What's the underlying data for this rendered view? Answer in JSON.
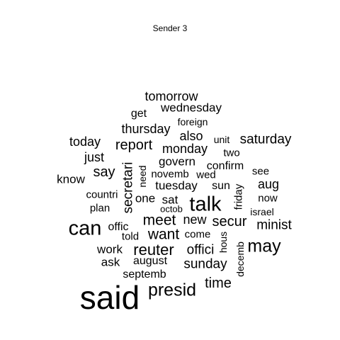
{
  "title": "Sender 3",
  "text_color": "#000000",
  "words": [
    {
      "text": "said",
      "size": 5
    },
    {
      "text": "presid",
      "size": 4
    },
    {
      "text": "can",
      "size": 4
    },
    {
      "text": "talk",
      "size": 4
    },
    {
      "text": "may",
      "size": 4
    },
    {
      "text": "reuter",
      "size": 3
    },
    {
      "text": "meet",
      "size": 3
    },
    {
      "text": "want",
      "size": 3
    },
    {
      "text": "secur",
      "size": 3
    },
    {
      "text": "report",
      "size": 3
    },
    {
      "text": "say",
      "size": 3
    },
    {
      "text": "secretari",
      "size": 3
    },
    {
      "text": "time",
      "size": 2
    },
    {
      "text": "sunday",
      "size": 2
    },
    {
      "text": "offici",
      "size": 2
    },
    {
      "text": "new",
      "size": 2
    },
    {
      "text": "minist",
      "size": 2
    },
    {
      "text": "saturday",
      "size": 2
    },
    {
      "text": "wednesday",
      "size": 2
    },
    {
      "text": "tomorrow",
      "size": 2
    },
    {
      "text": "thursday",
      "size": 2
    },
    {
      "text": "today",
      "size": 2
    },
    {
      "text": "also",
      "size": 2
    },
    {
      "text": "monday",
      "size": 2
    },
    {
      "text": "just",
      "size": 2
    },
    {
      "text": "govern",
      "size": 2
    },
    {
      "text": "know",
      "size": 2
    },
    {
      "text": "tuesday",
      "size": 2
    },
    {
      "text": "work",
      "size": 2
    },
    {
      "text": "sat",
      "size": 2
    },
    {
      "text": "aug",
      "size": 2
    },
    {
      "text": "sun",
      "size": 2
    },
    {
      "text": "ask",
      "size": 2
    },
    {
      "text": "septemb",
      "size": 2
    },
    {
      "text": "august",
      "size": 2
    },
    {
      "text": "confirm",
      "size": 2
    },
    {
      "text": "one",
      "size": 2
    },
    {
      "text": "get",
      "size": 2
    },
    {
      "text": "foreign",
      "size": 1
    },
    {
      "text": "unit",
      "size": 1
    },
    {
      "text": "two",
      "size": 1
    },
    {
      "text": "see",
      "size": 1
    },
    {
      "text": "now",
      "size": 1
    },
    {
      "text": "israel",
      "size": 1
    },
    {
      "text": "novemb",
      "size": 1
    },
    {
      "text": "wed",
      "size": 1
    },
    {
      "text": "need",
      "size": 1
    },
    {
      "text": "countri",
      "size": 1
    },
    {
      "text": "plan",
      "size": 1
    },
    {
      "text": "octob",
      "size": 1
    },
    {
      "text": "offic",
      "size": 1
    },
    {
      "text": "told",
      "size": 1
    },
    {
      "text": "come",
      "size": 1
    },
    {
      "text": "hous",
      "size": 1
    },
    {
      "text": "decemb",
      "size": 1
    },
    {
      "text": "friday",
      "size": 1
    }
  ]
}
